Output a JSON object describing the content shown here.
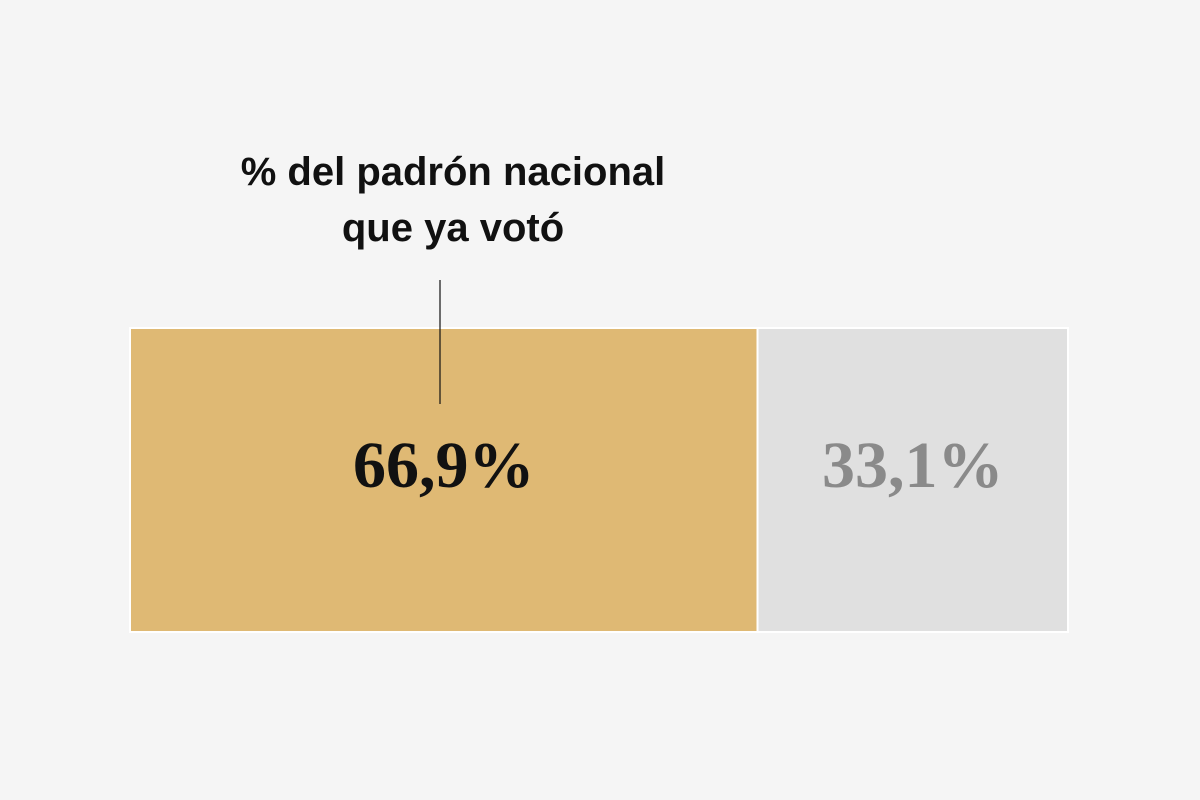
{
  "chart_data": {
    "type": "stacked_bar",
    "annotation": "% del padrón nacional que ya votó",
    "values": [
      66.9,
      33.1
    ],
    "value_labels": [
      "66,9%",
      "33,1%"
    ],
    "colors": [
      "#dfb974",
      "#e0e0e0"
    ],
    "xlim": [
      0,
      100
    ]
  }
}
